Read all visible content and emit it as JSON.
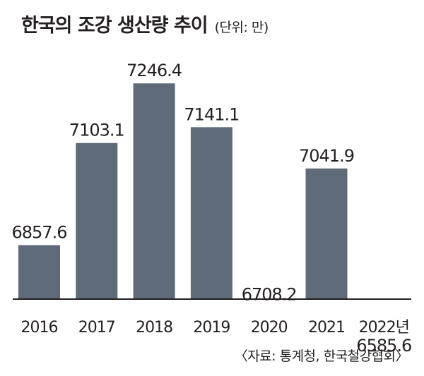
{
  "header": {
    "title": "한국의 조강 생산량 추이",
    "unit": "(단위: 만)"
  },
  "source": "〈자료: 통계청, 한국철강협회〉",
  "colors": {
    "bar": "#5f6b78",
    "axis": "#231f20",
    "text": "#231f20"
  },
  "chart_data": {
    "type": "bar",
    "categories": [
      "2016",
      "2017",
      "2018",
      "2019",
      "2020",
      "2021",
      "2022년"
    ],
    "values": [
      6857.6,
      7103.1,
      7246.4,
      7141.1,
      6708.2,
      7041.9,
      6585.6
    ],
    "value_labels": [
      "6857.6",
      "7103.1",
      "7246.4",
      "7141.1",
      "6708.2",
      "7041.9",
      "6585.6"
    ],
    "title": "한국의 조강 생산량 추이",
    "ylabel": "",
    "xlabel": "",
    "grid": false,
    "legend": "none"
  }
}
